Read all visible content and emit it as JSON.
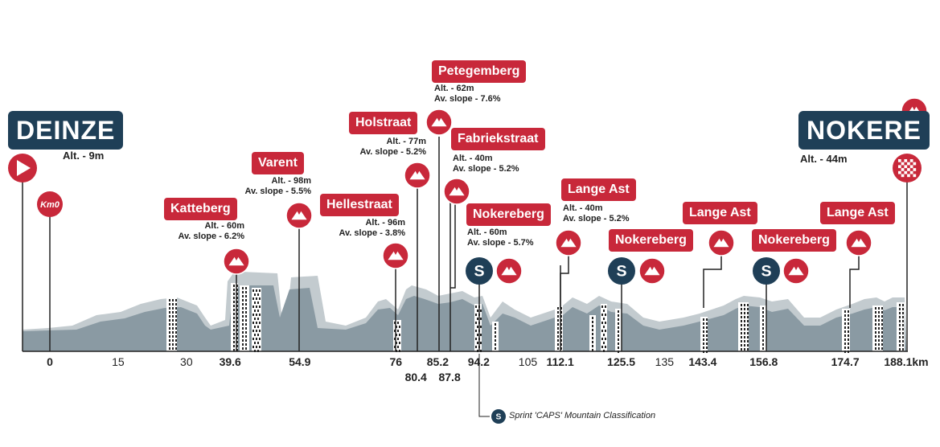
{
  "start": {
    "name": "DEINZE",
    "alt": "Alt. - 9m",
    "km0": "Km0"
  },
  "finish": {
    "name": "NOKERE",
    "alt": "Alt. - 44m"
  },
  "climbs": [
    {
      "id": "katteberg",
      "name": "Katteberg",
      "alt": "Alt. - 60m",
      "slope": "Av. slope - 6.2%"
    },
    {
      "id": "varent",
      "name": "Varent",
      "alt": "Alt. - 98m",
      "slope": "Av. slope - 5.5%"
    },
    {
      "id": "hellestraat",
      "name": "Hellestraat",
      "alt": "Alt. - 96m",
      "slope": "Av. slope - 3.8%"
    },
    {
      "id": "holstraat",
      "name": "Holstraat",
      "alt": "Alt. - 77m",
      "slope": "Av. slope - 5.2%"
    },
    {
      "id": "petegemberg",
      "name": "Petegemberg",
      "alt": "Alt. - 62m",
      "slope": "Av. slope - 7.6%"
    },
    {
      "id": "fabriekstraat",
      "name": "Fabriekstraat",
      "alt": "Alt. - 40m",
      "slope": "Av. slope - 5.2%"
    },
    {
      "id": "nokereberg1",
      "name": "Nokereberg",
      "alt": "Alt. - 60m",
      "slope": "Av. slope - 5.7%"
    },
    {
      "id": "langeast1",
      "name": "Lange Ast",
      "alt": "Alt. - 40m",
      "slope": "Av. slope - 5.2%"
    },
    {
      "id": "nokereberg2",
      "name": "Nokereberg"
    },
    {
      "id": "langeast2",
      "name": "Lange Ast"
    },
    {
      "id": "nokereberg3",
      "name": "Nokereberg"
    },
    {
      "id": "langeast3",
      "name": "Lange Ast"
    }
  ],
  "km_markers": [
    {
      "km": 0,
      "label": "0",
      "bold": true,
      "row": 1
    },
    {
      "km": 15,
      "label": "15",
      "bold": false,
      "row": 1
    },
    {
      "km": 30,
      "label": "30",
      "bold": false,
      "row": 1
    },
    {
      "km": 39.6,
      "label": "39.6",
      "bold": true,
      "row": 1
    },
    {
      "km": 54.9,
      "label": "54.9",
      "bold": true,
      "row": 1
    },
    {
      "km": 76,
      "label": "76",
      "bold": true,
      "row": 1
    },
    {
      "km": 80.4,
      "label": "80.4",
      "bold": true,
      "row": 2
    },
    {
      "km": 85.2,
      "label": "85.2",
      "bold": true,
      "row": 1
    },
    {
      "km": 87.8,
      "label": "87.8",
      "bold": true,
      "row": 2
    },
    {
      "km": 94.2,
      "label": "94.2",
      "bold": true,
      "row": 1
    },
    {
      "km": 105,
      "label": "105",
      "bold": false,
      "row": 1
    },
    {
      "km": 112.1,
      "label": "112.1",
      "bold": true,
      "row": 1
    },
    {
      "km": 125.5,
      "label": "125.5",
      "bold": true,
      "row": 1
    },
    {
      "km": 135,
      "label": "135",
      "bold": false,
      "row": 1
    },
    {
      "km": 143.4,
      "label": "143.4",
      "bold": true,
      "row": 1
    },
    {
      "km": 156.8,
      "label": "156.8",
      "bold": true,
      "row": 1
    },
    {
      "km": 174.7,
      "label": "174.7",
      "bold": true,
      "row": 1
    },
    {
      "km": 188.1,
      "label": "188.1km",
      "bold": true,
      "row": 1
    }
  ],
  "sprint_symbol": "S",
  "legend": {
    "text": "Sprint 'CAPS' Mountain Classification"
  },
  "colors": {
    "navy": "#1f3f57",
    "red": "#c8283a",
    "profile_dark": "#8a9aa3",
    "profile_light": "#c3cbcf"
  }
}
